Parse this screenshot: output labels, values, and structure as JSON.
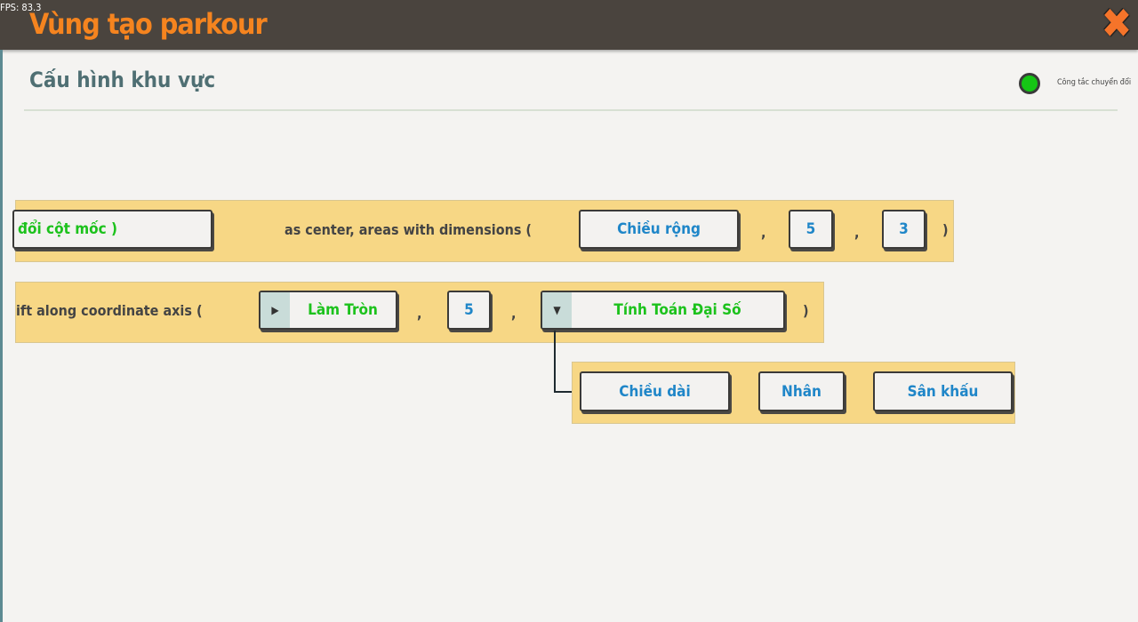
{
  "fps": "FPS: 83.3",
  "header": {
    "title": "Vùng tạo parkour",
    "close_icon": "close-x-icon"
  },
  "panel": {
    "subtitle": "Cấu hình khu vực",
    "toggle_label": "Công tắc chuyển đổi",
    "toggle_color": "#15c515"
  },
  "row1": {
    "button1": "đổi cột mốc )",
    "text": "as center, areas with dimensions (",
    "dim_button": "Chiều rộng",
    "comma1": ",",
    "value1": "5",
    "comma2": ",",
    "value2": "3",
    "close_paren": ")"
  },
  "row2": {
    "text": "ift along coordinate axis  (",
    "round_button": "Làm Tròn",
    "comma1": ",",
    "value": "5",
    "comma2": ",",
    "algebra_button": "Tính Toán Đại Số",
    "close_paren": ")"
  },
  "row3": {
    "buttons": [
      "Chiều dài",
      "Nhân",
      "Sân khấu"
    ]
  },
  "colors": {
    "header": "#4a443e",
    "title": "#f5841f",
    "block": "#f7d785",
    "value_text": "#1f86c8",
    "green_text": "#1cc21c"
  }
}
